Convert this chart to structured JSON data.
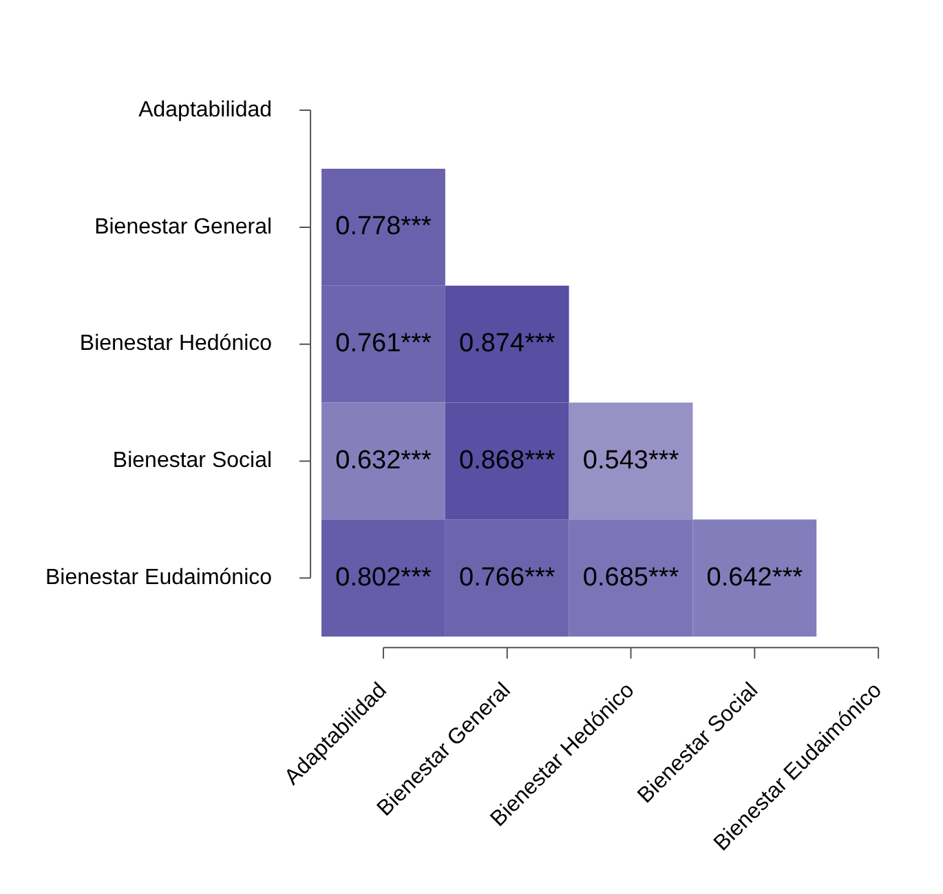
{
  "chart_data": {
    "type": "heatmap",
    "categories": [
      "Adaptabilidad",
      "Bienestar General",
      "Bienestar Hedónico",
      "Bienestar Social",
      "Bienestar Eudaimónico"
    ],
    "y_categories": [
      "Adaptabilidad",
      "Bienestar General",
      "Bienestar Hedónico",
      "Bienestar Social",
      "Bienestar Eudaimónico"
    ],
    "cells": [
      [
        null,
        null,
        null,
        null,
        null
      ],
      [
        0.778,
        null,
        null,
        null,
        null
      ],
      [
        0.761,
        0.874,
        null,
        null,
        null
      ],
      [
        0.632,
        0.868,
        0.543,
        null,
        null
      ],
      [
        0.802,
        0.766,
        0.685,
        0.642,
        null
      ]
    ],
    "cell_labels": [
      [
        null,
        null,
        null,
        null,
        null
      ],
      [
        "0.778***",
        null,
        null,
        null,
        null
      ],
      [
        "0.761***",
        "0.874***",
        null,
        null,
        null
      ],
      [
        "0.632***",
        "0.868***",
        "0.543***",
        null,
        null
      ],
      [
        "0.802***",
        "0.766***",
        "0.685***",
        "0.642***",
        null
      ]
    ]
  }
}
